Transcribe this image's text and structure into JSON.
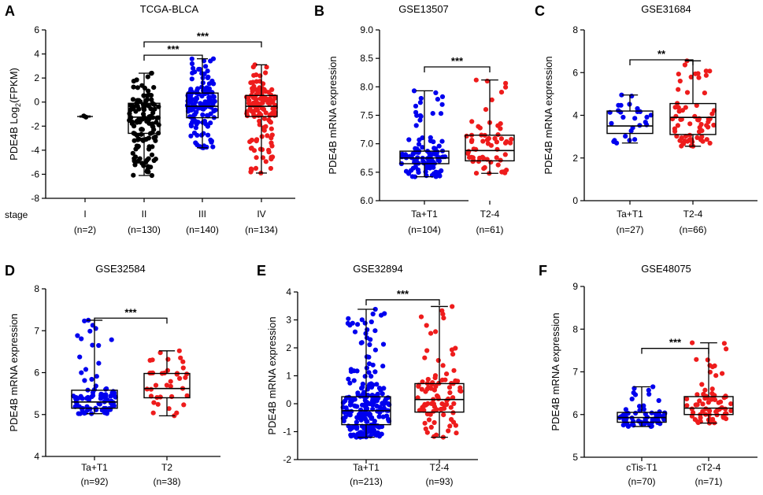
{
  "chart_data": [
    {
      "type": "boxplot",
      "panel_label": "A",
      "title": "TCGA-BLCA",
      "ylabel": "PDE4B Log2(FPKM)",
      "ylabel_main": "PDE4B  Log",
      "ylabel_sub": "2",
      "ylabel_tail": "(FPKM)",
      "ylim": [
        -8,
        6
      ],
      "yticks": [
        -8,
        -6,
        -4,
        -2,
        0,
        2,
        4,
        6
      ],
      "ytick_labels": [
        "-8",
        "-6",
        "-4",
        "-2",
        "0",
        "2",
        "4",
        "6"
      ],
      "x_prefix": "stage",
      "categories": [
        "I",
        "II",
        "III",
        "IV"
      ],
      "counts": [
        "(n=2)",
        "(n=130)",
        "(n=140)",
        "(n=134)"
      ],
      "colors": [
        "#000000",
        "#000000",
        "#0000ee",
        "#ee1c1c"
      ],
      "series": [
        {
          "name": "I",
          "min": -1.25,
          "q1": -1.25,
          "median": -1.2,
          "q3": -1.15,
          "max": -1.15,
          "n": 2
        },
        {
          "name": "II",
          "min": -6.1,
          "q1": -2.6,
          "median": -1.25,
          "q3": -0.1,
          "max": 2.4,
          "n": 130
        },
        {
          "name": "III",
          "min": -3.8,
          "q1": -1.3,
          "median": -0.35,
          "q3": 0.75,
          "max": 3.6,
          "n": 140
        },
        {
          "name": "IV",
          "min": -5.9,
          "q1": -1.2,
          "median": -0.35,
          "q3": 0.55,
          "max": 3.1,
          "n": 134
        }
      ],
      "significance": [
        {
          "from": 1,
          "to": 2,
          "label": "***",
          "y": 3.9
        },
        {
          "from": 1,
          "to": 3,
          "label": "***",
          "y": 5.0
        }
      ]
    },
    {
      "type": "boxplot",
      "panel_label": "B",
      "title": "GSE13507",
      "ylabel": "PDE4B mRNA expression",
      "ylim": [
        6.0,
        9.0
      ],
      "yticks": [
        6.0,
        6.5,
        7.0,
        7.5,
        8.0,
        8.5,
        9.0
      ],
      "ytick_labels": [
        "6.0",
        "6.5",
        "7.0",
        "7.5",
        "8.0",
        "8.5",
        "9.0"
      ],
      "categories": [
        "Ta+T1",
        "T2-4"
      ],
      "counts": [
        "(n=104)",
        "(n=61)"
      ],
      "colors": [
        "#0000ee",
        "#ee1c1c"
      ],
      "series": [
        {
          "name": "Ta+T1",
          "min": 6.42,
          "q1": 6.65,
          "median": 6.75,
          "q3": 6.87,
          "max": 7.93,
          "n": 104
        },
        {
          "name": "T2-4",
          "min": 6.48,
          "q1": 6.7,
          "median": 6.88,
          "q3": 7.15,
          "max": 8.12,
          "n": 61
        }
      ],
      "significance": [
        {
          "from": 0,
          "to": 1,
          "label": "***",
          "y": 8.35
        }
      ]
    },
    {
      "type": "boxplot",
      "panel_label": "C",
      "title": "GSE31684",
      "ylabel": "PDE4B mRNA expression",
      "ylim": [
        0,
        8
      ],
      "yticks": [
        0,
        2,
        4,
        6,
        8
      ],
      "ytick_labels": [
        "0",
        "2",
        "4",
        "6",
        "8"
      ],
      "categories": [
        "Ta+T1",
        "T2-4"
      ],
      "counts": [
        "(n=27)",
        "(n=66)"
      ],
      "colors": [
        "#0000ee",
        "#ee1c1c"
      ],
      "series": [
        {
          "name": "Ta+T1",
          "min": 2.7,
          "q1": 3.15,
          "median": 3.5,
          "q3": 4.2,
          "max": 4.95,
          "n": 27
        },
        {
          "name": "T2-4",
          "min": 2.55,
          "q1": 3.1,
          "median": 3.9,
          "q3": 4.55,
          "max": 6.55,
          "n": 66
        }
      ],
      "significance": [
        {
          "from": 0,
          "to": 1,
          "label": "**",
          "y": 6.6
        }
      ]
    },
    {
      "type": "boxplot",
      "panel_label": "D",
      "title": "GSE32584",
      "ylabel": "PDE4B mRNA expression",
      "ylim": [
        4,
        8
      ],
      "yticks": [
        4,
        5,
        6,
        7,
        8
      ],
      "ytick_labels": [
        "4",
        "5",
        "6",
        "7",
        "8"
      ],
      "categories": [
        "Ta+T1",
        "T2"
      ],
      "counts": [
        "(n=92)",
        "(n=38)"
      ],
      "colors": [
        "#0000ee",
        "#ee1c1c"
      ],
      "series": [
        {
          "name": "Ta+T1",
          "min": 5.02,
          "q1": 5.15,
          "median": 5.3,
          "q3": 5.58,
          "max": 7.25,
          "n": 92
        },
        {
          "name": "T2",
          "min": 4.97,
          "q1": 5.4,
          "median": 5.62,
          "q3": 5.98,
          "max": 6.52,
          "n": 38
        }
      ],
      "significance": [
        {
          "from": 0,
          "to": 1,
          "label": "***",
          "y": 7.3
        }
      ]
    },
    {
      "type": "boxplot",
      "panel_label": "E",
      "title": "GSE32894",
      "ylabel": "PDE4B mRNA expression",
      "ylim": [
        -2,
        4
      ],
      "yticks": [
        -2,
        -1,
        0,
        1,
        2,
        3,
        4
      ],
      "ytick_labels": [
        "-2",
        "-1",
        "0",
        "1",
        "2",
        "3",
        "4"
      ],
      "categories": [
        "Ta+T1",
        "T2-4"
      ],
      "counts": [
        "(n=213)",
        "(n=93)"
      ],
      "colors": [
        "#0000ee",
        "#ee1c1c"
      ],
      "series": [
        {
          "name": "Ta+T1",
          "min": -1.2,
          "q1": -0.75,
          "median": -0.25,
          "q3": 0.25,
          "max": 3.38,
          "n": 213
        },
        {
          "name": "T2-4",
          "min": -1.2,
          "q1": -0.3,
          "median": 0.15,
          "q3": 0.72,
          "max": 3.48,
          "n": 93
        }
      ],
      "significance": [
        {
          "from": 0,
          "to": 1,
          "label": "***",
          "y": 3.72
        }
      ]
    },
    {
      "type": "boxplot",
      "panel_label": "F",
      "title": "GSE48075",
      "ylabel": "PDE4B mRNA expression",
      "ylim": [
        5,
        9
      ],
      "yticks": [
        5,
        6,
        7,
        8,
        9
      ],
      "ytick_labels": [
        "5",
        "6",
        "7",
        "8",
        "9"
      ],
      "categories": [
        "cTis-T1",
        "cT2-4"
      ],
      "counts": [
        "(n=70)",
        "(n=71)"
      ],
      "colors": [
        "#0000ee",
        "#ee1c1c"
      ],
      "series": [
        {
          "name": "cTis-T1",
          "min": 5.72,
          "q1": 5.82,
          "median": 5.93,
          "q3": 6.05,
          "max": 6.65,
          "n": 70
        },
        {
          "name": "cT2-4",
          "min": 5.8,
          "q1": 6.0,
          "median": 6.15,
          "q3": 6.42,
          "max": 7.68,
          "n": 71
        }
      ],
      "significance": [
        {
          "from": 0,
          "to": 1,
          "label": "***",
          "y": 7.55
        }
      ]
    }
  ]
}
